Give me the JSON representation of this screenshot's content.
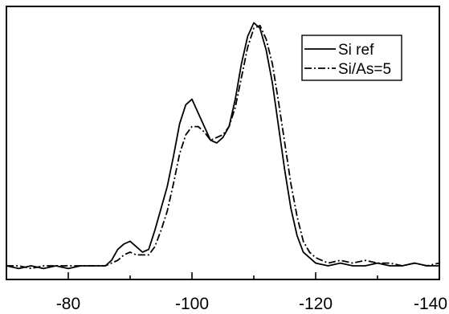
{
  "chart_data": {
    "type": "line",
    "title": "",
    "xlabel": "",
    "ylabel": "",
    "xlim": [
      -70,
      -140
    ],
    "ylim": [
      0,
      1.0
    ],
    "x_ticks": [
      -80,
      -100,
      -120,
      -140
    ],
    "x_tick_labels": [
      "-80",
      "-100",
      "-120",
      "-140"
    ],
    "y_ticks_shown": false,
    "grid": false,
    "legend_position": "top-right",
    "series": [
      {
        "name": "Si ref",
        "style": "solid",
        "color": "#000000",
        "points": [
          [
            -70,
            0.05
          ],
          [
            -72,
            0.04
          ],
          [
            -74,
            0.05
          ],
          [
            -76,
            0.04
          ],
          [
            -78,
            0.05
          ],
          [
            -80,
            0.04
          ],
          [
            -82,
            0.05
          ],
          [
            -84,
            0.05
          ],
          [
            -86,
            0.05
          ],
          [
            -87,
            0.07
          ],
          [
            -88,
            0.11
          ],
          [
            -89,
            0.13
          ],
          [
            -90,
            0.14
          ],
          [
            -91,
            0.12
          ],
          [
            -92,
            0.1
          ],
          [
            -93,
            0.11
          ],
          [
            -94,
            0.18
          ],
          [
            -95,
            0.26
          ],
          [
            -96,
            0.34
          ],
          [
            -97,
            0.45
          ],
          [
            -98,
            0.57
          ],
          [
            -99,
            0.64
          ],
          [
            -100,
            0.66
          ],
          [
            -101,
            0.61
          ],
          [
            -102,
            0.56
          ],
          [
            -103,
            0.51
          ],
          [
            -104,
            0.5
          ],
          [
            -105,
            0.52
          ],
          [
            -106,
            0.56
          ],
          [
            -107,
            0.66
          ],
          [
            -108,
            0.79
          ],
          [
            -109,
            0.89
          ],
          [
            -110,
            0.94
          ],
          [
            -111,
            0.92
          ],
          [
            -112,
            0.84
          ],
          [
            -113,
            0.72
          ],
          [
            -114,
            0.56
          ],
          [
            -115,
            0.4
          ],
          [
            -116,
            0.26
          ],
          [
            -117,
            0.16
          ],
          [
            -118,
            0.1
          ],
          [
            -119,
            0.08
          ],
          [
            -120,
            0.06
          ],
          [
            -122,
            0.05
          ],
          [
            -124,
            0.06
          ],
          [
            -126,
            0.05
          ],
          [
            -128,
            0.05
          ],
          [
            -130,
            0.06
          ],
          [
            -132,
            0.05
          ],
          [
            -134,
            0.05
          ],
          [
            -136,
            0.06
          ],
          [
            -138,
            0.05
          ],
          [
            -140,
            0.05
          ]
        ]
      },
      {
        "name": "Si/As=5",
        "style": "dashdot",
        "color": "#000000",
        "points": [
          [
            -70,
            0.05
          ],
          [
            -72,
            0.05
          ],
          [
            -74,
            0.04
          ],
          [
            -76,
            0.05
          ],
          [
            -78,
            0.05
          ],
          [
            -80,
            0.05
          ],
          [
            -82,
            0.05
          ],
          [
            -84,
            0.05
          ],
          [
            -86,
            0.05
          ],
          [
            -88,
            0.07
          ],
          [
            -89,
            0.09
          ],
          [
            -90,
            0.1
          ],
          [
            -91,
            0.09
          ],
          [
            -92,
            0.09
          ],
          [
            -93,
            0.09
          ],
          [
            -94,
            0.12
          ],
          [
            -95,
            0.18
          ],
          [
            -96,
            0.25
          ],
          [
            -97,
            0.35
          ],
          [
            -98,
            0.46
          ],
          [
            -99,
            0.53
          ],
          [
            -100,
            0.56
          ],
          [
            -101,
            0.56
          ],
          [
            -102,
            0.54
          ],
          [
            -103,
            0.51
          ],
          [
            -104,
            0.52
          ],
          [
            -105,
            0.53
          ],
          [
            -106,
            0.56
          ],
          [
            -107,
            0.63
          ],
          [
            -108,
            0.74
          ],
          [
            -109,
            0.85
          ],
          [
            -110,
            0.92
          ],
          [
            -111,
            0.93
          ],
          [
            -112,
            0.88
          ],
          [
            -113,
            0.79
          ],
          [
            -114,
            0.65
          ],
          [
            -115,
            0.5
          ],
          [
            -116,
            0.35
          ],
          [
            -117,
            0.23
          ],
          [
            -118,
            0.14
          ],
          [
            -119,
            0.1
          ],
          [
            -120,
            0.08
          ],
          [
            -122,
            0.06
          ],
          [
            -124,
            0.07
          ],
          [
            -126,
            0.06
          ],
          [
            -128,
            0.07
          ],
          [
            -130,
            0.06
          ],
          [
            -132,
            0.06
          ],
          [
            -134,
            0.05
          ],
          [
            -136,
            0.06
          ],
          [
            -138,
            0.05
          ],
          [
            -140,
            0.06
          ]
        ]
      }
    ]
  }
}
